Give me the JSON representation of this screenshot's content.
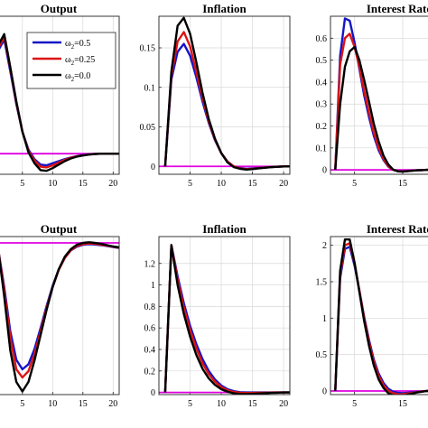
{
  "legend": {
    "entries": [
      {
        "label": "ω",
        "sub": "2",
        "suffix": "=0.5",
        "color": "#1414c8"
      },
      {
        "label": "ω",
        "sub": "2",
        "suffix": "=0.25",
        "color": "#dc1414"
      },
      {
        "label": "ω",
        "sub": "2",
        "suffix": "=0.0",
        "color": "#000000"
      }
    ]
  },
  "colors": {
    "zero_line": "#e000e0",
    "grid": "#d8d8d8",
    "axes": "#222222"
  },
  "chart_data": [
    {
      "type": "line",
      "title": "Output",
      "xlim": [
        1,
        21
      ],
      "ylim": [
        -0.015,
        0.1
      ],
      "xticks": [
        5,
        10,
        15,
        20
      ],
      "xtick_labels": [
        "5",
        "10",
        "15",
        "20"
      ],
      "yticks": [],
      "ytick_labels": [],
      "x": [
        1,
        2,
        3,
        4,
        5,
        6,
        7,
        8,
        9,
        10,
        11,
        12,
        13,
        14,
        15,
        16,
        17,
        18,
        19,
        20,
        21
      ],
      "series": [
        {
          "name": "ω2=0.5",
          "values": [
            0.075,
            0.083,
            0.06,
            0.036,
            0.016,
            0.003,
            -0.004,
            -0.008,
            -0.0085,
            -0.007,
            -0.0055,
            -0.004,
            -0.0028,
            -0.0018,
            -0.001,
            -0.0005,
            -0.0002,
            0,
            0,
            0,
            0
          ]
        },
        {
          "name": "ω2=0.25",
          "values": [
            0.077,
            0.085,
            0.062,
            0.037,
            0.016,
            0.002,
            -0.005,
            -0.0095,
            -0.01,
            -0.0085,
            -0.0065,
            -0.0045,
            -0.003,
            -0.002,
            -0.0012,
            -0.0006,
            -0.0002,
            0,
            0,
            0,
            0
          ]
        },
        {
          "name": "ω2=0.0",
          "values": [
            0.079,
            0.087,
            0.063,
            0.038,
            0.016,
            0.001,
            -0.007,
            -0.012,
            -0.0125,
            -0.0105,
            -0.008,
            -0.0055,
            -0.0035,
            -0.0022,
            -0.0013,
            -0.0007,
            -0.0003,
            0,
            0,
            0,
            0
          ]
        }
      ],
      "zero_line": 0,
      "grid": true
    },
    {
      "type": "line",
      "title": "Inflation",
      "xlim": [
        0,
        21
      ],
      "ylim": [
        -0.01,
        0.19
      ],
      "xticks": [
        5,
        10,
        15,
        20
      ],
      "xtick_labels": [
        "5",
        "10",
        "15",
        "20"
      ],
      "yticks": [
        0,
        0.05,
        0.1,
        0.15
      ],
      "ytick_labels": [
        "0",
        "0.05",
        "0.1",
        "0.15"
      ],
      "x": [
        1,
        2,
        3,
        4,
        5,
        6,
        7,
        8,
        9,
        10,
        11,
        12,
        13,
        14,
        15,
        16,
        17,
        18,
        19,
        20,
        21
      ],
      "series": [
        {
          "name": "ω2=0.5",
          "values": [
            0,
            0.11,
            0.145,
            0.155,
            0.14,
            0.113,
            0.082,
            0.055,
            0.033,
            0.017,
            0.006,
            0,
            -0.002,
            -0.003,
            -0.0025,
            -0.002,
            -0.0015,
            -0.001,
            -0.0005,
            0,
            0
          ]
        },
        {
          "name": "ω2=0.25",
          "values": [
            0,
            0.115,
            0.158,
            0.17,
            0.152,
            0.12,
            0.087,
            0.057,
            0.034,
            0.017,
            0.006,
            0,
            -0.0025,
            -0.0035,
            -0.003,
            -0.0022,
            -0.0015,
            -0.001,
            -0.0005,
            0,
            0
          ]
        },
        {
          "name": "ω2=0.0",
          "values": [
            0,
            0.12,
            0.178,
            0.188,
            0.168,
            0.132,
            0.093,
            0.06,
            0.035,
            0.017,
            0.005,
            -0.001,
            -0.003,
            -0.004,
            -0.0035,
            -0.0025,
            -0.0018,
            -0.001,
            -0.0005,
            0,
            0
          ]
        }
      ],
      "zero_line": 0,
      "grid": true
    },
    {
      "type": "line",
      "title": "Interest Rate",
      "xlim": [
        0,
        21
      ],
      "ylim": [
        -0.02,
        0.7
      ],
      "xticks": [
        5,
        15
      ],
      "xtick_labels": [
        "5",
        "15"
      ],
      "yticks": [
        0,
        0.1,
        0.2,
        0.3,
        0.4,
        0.5,
        0.6
      ],
      "ytick_labels": [
        "0",
        "0.1",
        "0.2",
        "0.3",
        "0.4",
        "0.5",
        "0.6"
      ],
      "x": [
        1,
        2,
        3,
        4,
        5,
        6,
        7,
        8,
        9,
        10,
        11,
        12,
        13,
        14,
        15,
        16,
        17,
        18,
        19,
        20,
        21
      ],
      "series": [
        {
          "name": "ω2=0.5",
          "values": [
            0,
            0.52,
            0.69,
            0.68,
            0.58,
            0.46,
            0.34,
            0.24,
            0.155,
            0.09,
            0.045,
            0.015,
            0,
            -0.005,
            -0.006,
            -0.005,
            -0.003,
            -0.002,
            -0.001,
            0,
            0
          ]
        },
        {
          "name": "ω2=0.25",
          "values": [
            0,
            0.48,
            0.6,
            0.62,
            0.56,
            0.47,
            0.36,
            0.26,
            0.17,
            0.1,
            0.05,
            0.017,
            0,
            -0.006,
            -0.007,
            -0.005,
            -0.003,
            -0.002,
            -0.001,
            0,
            0
          ]
        },
        {
          "name": "ω2=0.0",
          "values": [
            0,
            0.3,
            0.47,
            0.54,
            0.56,
            0.5,
            0.41,
            0.31,
            0.21,
            0.13,
            0.065,
            0.025,
            0.002,
            -0.007,
            -0.008,
            -0.006,
            -0.004,
            -0.002,
            -0.001,
            0,
            0
          ]
        }
      ],
      "zero_line": 0,
      "grid": true
    },
    {
      "type": "line",
      "title": "Output",
      "xlim": [
        1,
        21
      ],
      "ylim": [
        -2.3,
        0.2
      ],
      "xticks": [
        5,
        10,
        15,
        20
      ],
      "xtick_labels": [
        "5",
        "10",
        "15",
        "20"
      ],
      "yticks": [],
      "ytick_labels": [],
      "x": [
        1,
        2,
        3,
        4,
        5,
        6,
        7,
        8,
        9,
        10,
        11,
        12,
        13,
        14,
        15,
        16,
        17,
        18,
        19,
        20,
        21
      ],
      "series": [
        {
          "name": "ω2=0.5",
          "values": [
            0,
            -0.6,
            -1.3,
            -1.75,
            -1.9,
            -1.82,
            -1.58,
            -1.25,
            -0.9,
            -0.58,
            -0.32,
            -0.14,
            -0.02,
            0.04,
            0.07,
            0.08,
            0.075,
            0.065,
            0.05,
            0.035,
            0.02
          ]
        },
        {
          "name": "ω2=0.25",
          "values": [
            0,
            -0.65,
            -1.4,
            -1.9,
            -2.03,
            -1.93,
            -1.66,
            -1.3,
            -0.93,
            -0.6,
            -0.33,
            -0.14,
            -0.015,
            0.05,
            0.08,
            0.09,
            0.085,
            0.07,
            0.055,
            0.04,
            0.025
          ]
        },
        {
          "name": "ω2=0.0",
          "values": [
            0,
            -0.75,
            -1.6,
            -2.1,
            -2.25,
            -2.1,
            -1.76,
            -1.36,
            -0.96,
            -0.6,
            -0.32,
            -0.12,
            0,
            0.07,
            0.1,
            0.11,
            0.1,
            0.085,
            0.065,
            0.045,
            0.03
          ]
        }
      ],
      "zero_line": 0.1,
      "grid": true
    },
    {
      "type": "line",
      "title": "Inflation",
      "xlim": [
        0,
        21
      ],
      "ylim": [
        -0.02,
        1.45
      ],
      "xticks": [
        5,
        10,
        15,
        20
      ],
      "xtick_labels": [
        "5",
        "10",
        "15",
        "20"
      ],
      "yticks": [
        0,
        0.2,
        0.4,
        0.6,
        0.8,
        1,
        1.2
      ],
      "ytick_labels": [
        "0",
        "0.2",
        "0.4",
        "0.6",
        "0.8",
        "1",
        "1.2"
      ],
      "x": [
        1,
        2,
        3,
        4,
        5,
        6,
        7,
        8,
        9,
        10,
        11,
        12,
        13,
        14,
        15,
        16,
        17,
        18,
        19,
        20,
        21
      ],
      "series": [
        {
          "name": "ω2=0.5",
          "values": [
            0,
            1.37,
            1.08,
            0.83,
            0.62,
            0.45,
            0.31,
            0.2,
            0.12,
            0.065,
            0.03,
            0.012,
            0.003,
            0,
            0,
            0,
            0,
            0,
            0,
            0,
            0
          ]
        },
        {
          "name": "ω2=0.25",
          "values": [
            0,
            1.37,
            1.05,
            0.79,
            0.58,
            0.41,
            0.27,
            0.17,
            0.1,
            0.05,
            0.02,
            0.005,
            -0.003,
            -0.005,
            -0.004,
            -0.003,
            -0.002,
            -0.001,
            0,
            0,
            0
          ]
        },
        {
          "name": "ω2=0.0",
          "values": [
            0,
            1.37,
            1.0,
            0.73,
            0.52,
            0.35,
            0.22,
            0.13,
            0.07,
            0.03,
            0.006,
            -0.008,
            -0.014,
            -0.015,
            -0.013,
            -0.01,
            -0.007,
            -0.004,
            -0.002,
            0,
            0
          ]
        }
      ],
      "zero_line": 0,
      "grid": true
    },
    {
      "type": "line",
      "title": "Interest Rate",
      "xlim": [
        0,
        21
      ],
      "ylim": [
        -0.05,
        2.12
      ],
      "xticks": [
        5,
        15
      ],
      "xtick_labels": [
        "5",
        "15"
      ],
      "yticks": [
        0,
        0.5,
        1,
        1.5,
        2
      ],
      "ytick_labels": [
        "0",
        "0.5",
        "1",
        "1.5",
        "2"
      ],
      "x": [
        1,
        2,
        3,
        4,
        5,
        6,
        7,
        8,
        9,
        10,
        11,
        12,
        13,
        14,
        15,
        16,
        17,
        18,
        19,
        20,
        21
      ],
      "series": [
        {
          "name": "ω2=0.5",
          "values": [
            0,
            1.55,
            1.95,
            1.98,
            1.72,
            1.38,
            1.02,
            0.7,
            0.43,
            0.24,
            0.11,
            0.03,
            -0.01,
            -0.025,
            -0.03,
            -0.025,
            -0.018,
            -0.01,
            -0.005,
            0,
            0
          ]
        },
        {
          "name": "ω2=0.25",
          "values": [
            0,
            1.6,
            2.0,
            2.03,
            1.75,
            1.38,
            1.0,
            0.67,
            0.4,
            0.21,
            0.08,
            0.005,
            -0.03,
            -0.045,
            -0.045,
            -0.035,
            -0.025,
            -0.015,
            -0.007,
            0,
            0
          ]
        },
        {
          "name": "ω2=0.0",
          "values": [
            0,
            1.65,
            2.08,
            2.08,
            1.76,
            1.36,
            0.96,
            0.62,
            0.35,
            0.16,
            0.04,
            -0.03,
            -0.06,
            -0.07,
            -0.065,
            -0.05,
            -0.035,
            -0.02,
            -0.01,
            0,
            0
          ]
        }
      ],
      "zero_line": 0,
      "grid": true
    }
  ]
}
